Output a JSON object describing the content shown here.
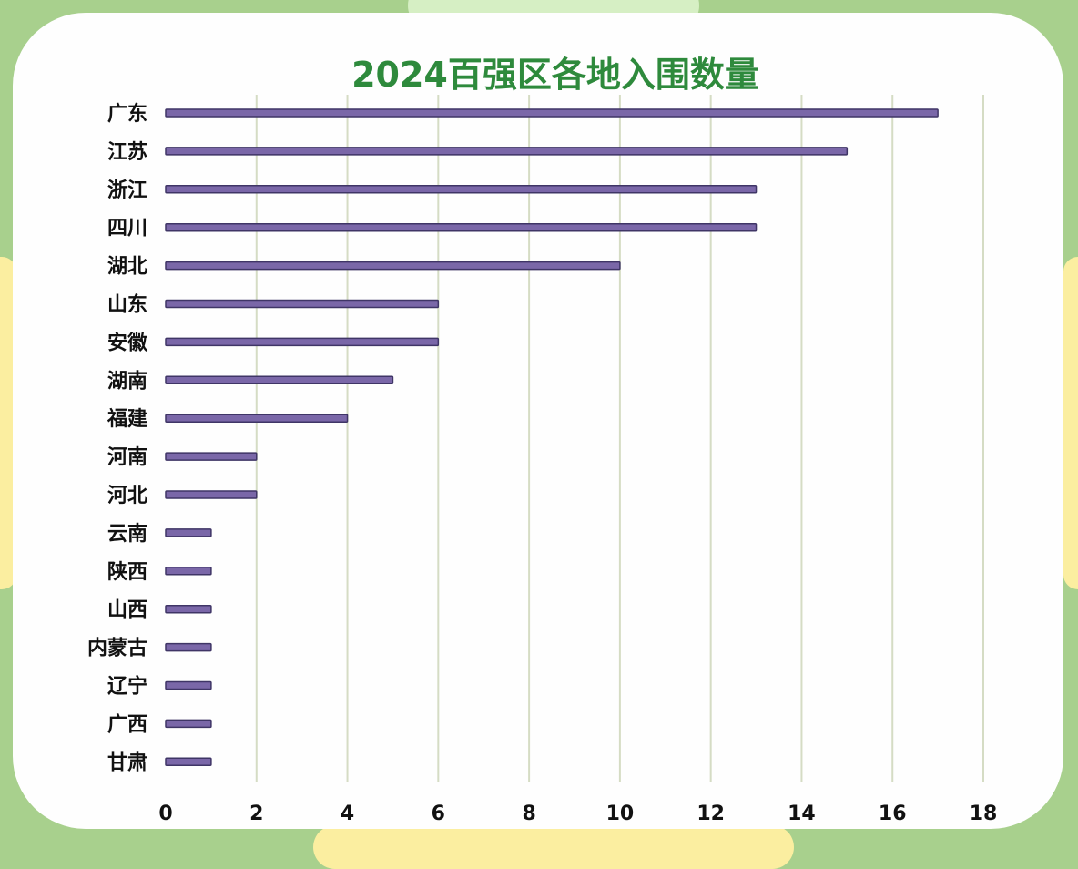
{
  "chart_data": {
    "type": "bar",
    "orientation": "horizontal",
    "title": "2024百强区各地入围数量",
    "categories": [
      "广东",
      "江苏",
      "浙江",
      "四川",
      "湖北",
      "山东",
      "安徽",
      "湖南",
      "福建",
      "河南",
      "河北",
      "云南",
      "陕西",
      "山西",
      "内蒙古",
      "辽宁",
      "广西",
      "甘肃"
    ],
    "values": [
      17,
      15,
      13,
      13,
      10,
      6,
      6,
      5,
      4,
      2,
      2,
      1,
      1,
      1,
      1,
      1,
      1,
      1
    ],
    "xlim": [
      0,
      18
    ],
    "xticks": [
      0,
      2,
      4,
      6,
      8,
      10,
      12,
      14,
      16,
      18
    ],
    "grid": "vertical",
    "legend": "none",
    "colors": {
      "bar_fill": "#7a67a8",
      "bar_stroke": "#3f3566",
      "title": "#2e8a3c",
      "frame": "#a8d08d",
      "accent": "#fbeea0"
    }
  }
}
